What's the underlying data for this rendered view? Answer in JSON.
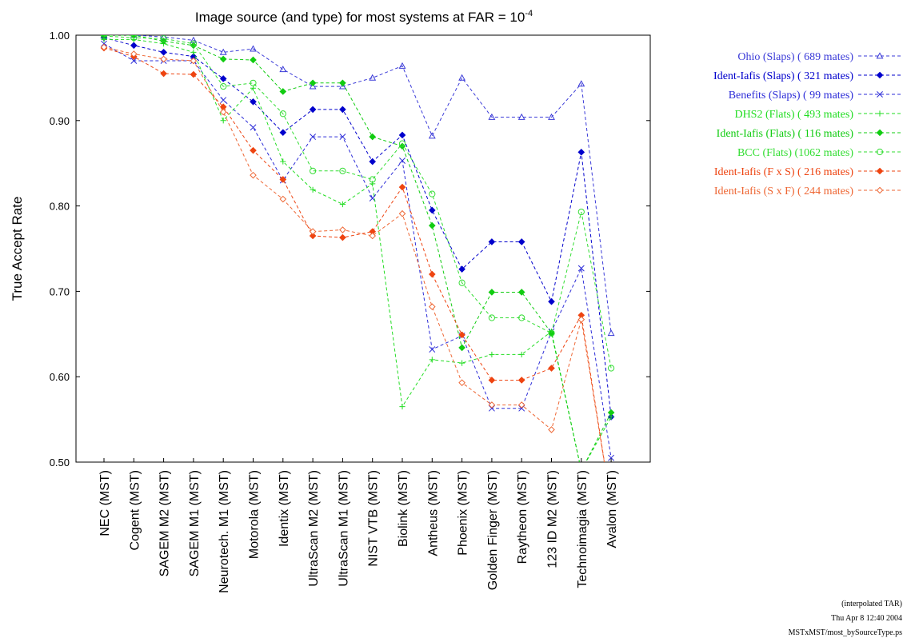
{
  "chart_data": {
    "type": "line",
    "title": "Image source (and type) for most systems at FAR = 10",
    "title_superscript": "-4",
    "ylabel": "True Accept Rate",
    "xlabel": "",
    "ylim": [
      0.5,
      1.0
    ],
    "yticks": [
      "0.50",
      "0.60",
      "0.70",
      "0.80",
      "0.90",
      "1.00"
    ],
    "grid": false,
    "legend_position": "right, outside plot",
    "categories": [
      "NEC (MST)",
      "Cogent (MST)",
      "SAGEM M2 (MST)",
      "SAGEM M1 (MST)",
      "Neurotech. M1 (MST)",
      "Motorola (MST)",
      "Identix (MST)",
      "UltraScan M2 (MST)",
      "UltraScan M1 (MST)",
      "NIST VTB (MST)",
      "Biolink (MST)",
      "Antheus (MST)",
      "Phoenix (MST)",
      "Golden Finger (MST)",
      "Raytheon (MST)",
      "123 ID M2 (MST)",
      "Technoimagia (MST)",
      "Avalon (MST)"
    ],
    "series": [
      {
        "name": "Ohio (Slaps) ( 689 mates)",
        "color": "#3b3bd8",
        "marker": "triangle",
        "values": [
          1.0,
          1.0,
          0.998,
          0.994,
          0.98,
          0.984,
          0.96,
          0.94,
          0.94,
          0.95,
          0.964,
          0.882,
          0.95,
          0.904,
          0.904,
          0.904,
          0.943,
          0.651
        ]
      },
      {
        "name": "Ident-Iafis (Slaps) ( 321 mates)",
        "color": "#0000cc",
        "marker": "diamond-filled",
        "values": [
          0.997,
          0.988,
          0.98,
          0.975,
          0.949,
          0.922,
          0.886,
          0.913,
          0.913,
          0.852,
          0.883,
          0.795,
          0.726,
          0.758,
          0.758,
          0.688,
          0.863,
          0.553
        ]
      },
      {
        "name": "Benefits (Slaps) (  99 mates)",
        "color": "#2d2dd8",
        "marker": "x",
        "values": [
          0.99,
          0.97,
          0.97,
          0.97,
          0.924,
          0.892,
          0.83,
          0.881,
          0.881,
          0.809,
          0.853,
          0.632,
          0.648,
          0.563,
          0.563,
          0.653,
          0.727,
          0.505
        ]
      },
      {
        "name": "DHS2 (Flats) ( 493 mates)",
        "color": "#22dd22",
        "marker": "plus",
        "values": [
          0.995,
          0.995,
          0.99,
          0.98,
          0.9,
          0.938,
          0.852,
          0.819,
          0.802,
          0.826,
          0.565,
          0.62,
          0.616,
          0.626,
          0.626,
          0.653,
          0.49,
          0.553
        ]
      },
      {
        "name": "Ident-Iafis (Flats) ( 116 mates)",
        "color": "#11cc11",
        "marker": "diamond-filled",
        "values": [
          1.0,
          1.0,
          0.993,
          0.988,
          0.972,
          0.971,
          0.934,
          0.944,
          0.944,
          0.881,
          0.87,
          0.777,
          0.634,
          0.699,
          0.699,
          0.651,
          0.49,
          0.558
        ]
      },
      {
        "name": "BCC (Flats) (1062 mates)",
        "color": "#33dd33",
        "marker": "circle-open",
        "values": [
          0.999,
          0.997,
          0.996,
          0.99,
          0.94,
          0.944,
          0.908,
          0.841,
          0.841,
          0.831,
          0.873,
          0.814,
          0.71,
          0.669,
          0.669,
          0.651,
          0.793,
          0.61
        ]
      },
      {
        "name": "Ident-Iafis (F x S) ( 216 mates)",
        "color": "#ee4411",
        "marker": "diamond-filled",
        "values": [
          0.985,
          0.975,
          0.955,
          0.954,
          0.916,
          0.865,
          0.831,
          0.765,
          0.763,
          0.77,
          0.822,
          0.72,
          0.649,
          0.596,
          0.596,
          0.61,
          0.672,
          0.45
        ]
      },
      {
        "name": "Ident-Iafis (S x F) ( 244 mates)",
        "color": "#ee6633",
        "marker": "diamond-open",
        "values": [
          0.986,
          0.978,
          0.972,
          0.97,
          0.91,
          0.836,
          0.808,
          0.77,
          0.772,
          0.765,
          0.791,
          0.682,
          0.593,
          0.567,
          0.567,
          0.538,
          0.667,
          0.45
        ]
      }
    ]
  },
  "footer": {
    "line1": "(interpolated TAR)",
    "line2": "Thu Apr  8 12:40 2004",
    "line3": "MSTxMST/most_bySourceType.ps"
  }
}
